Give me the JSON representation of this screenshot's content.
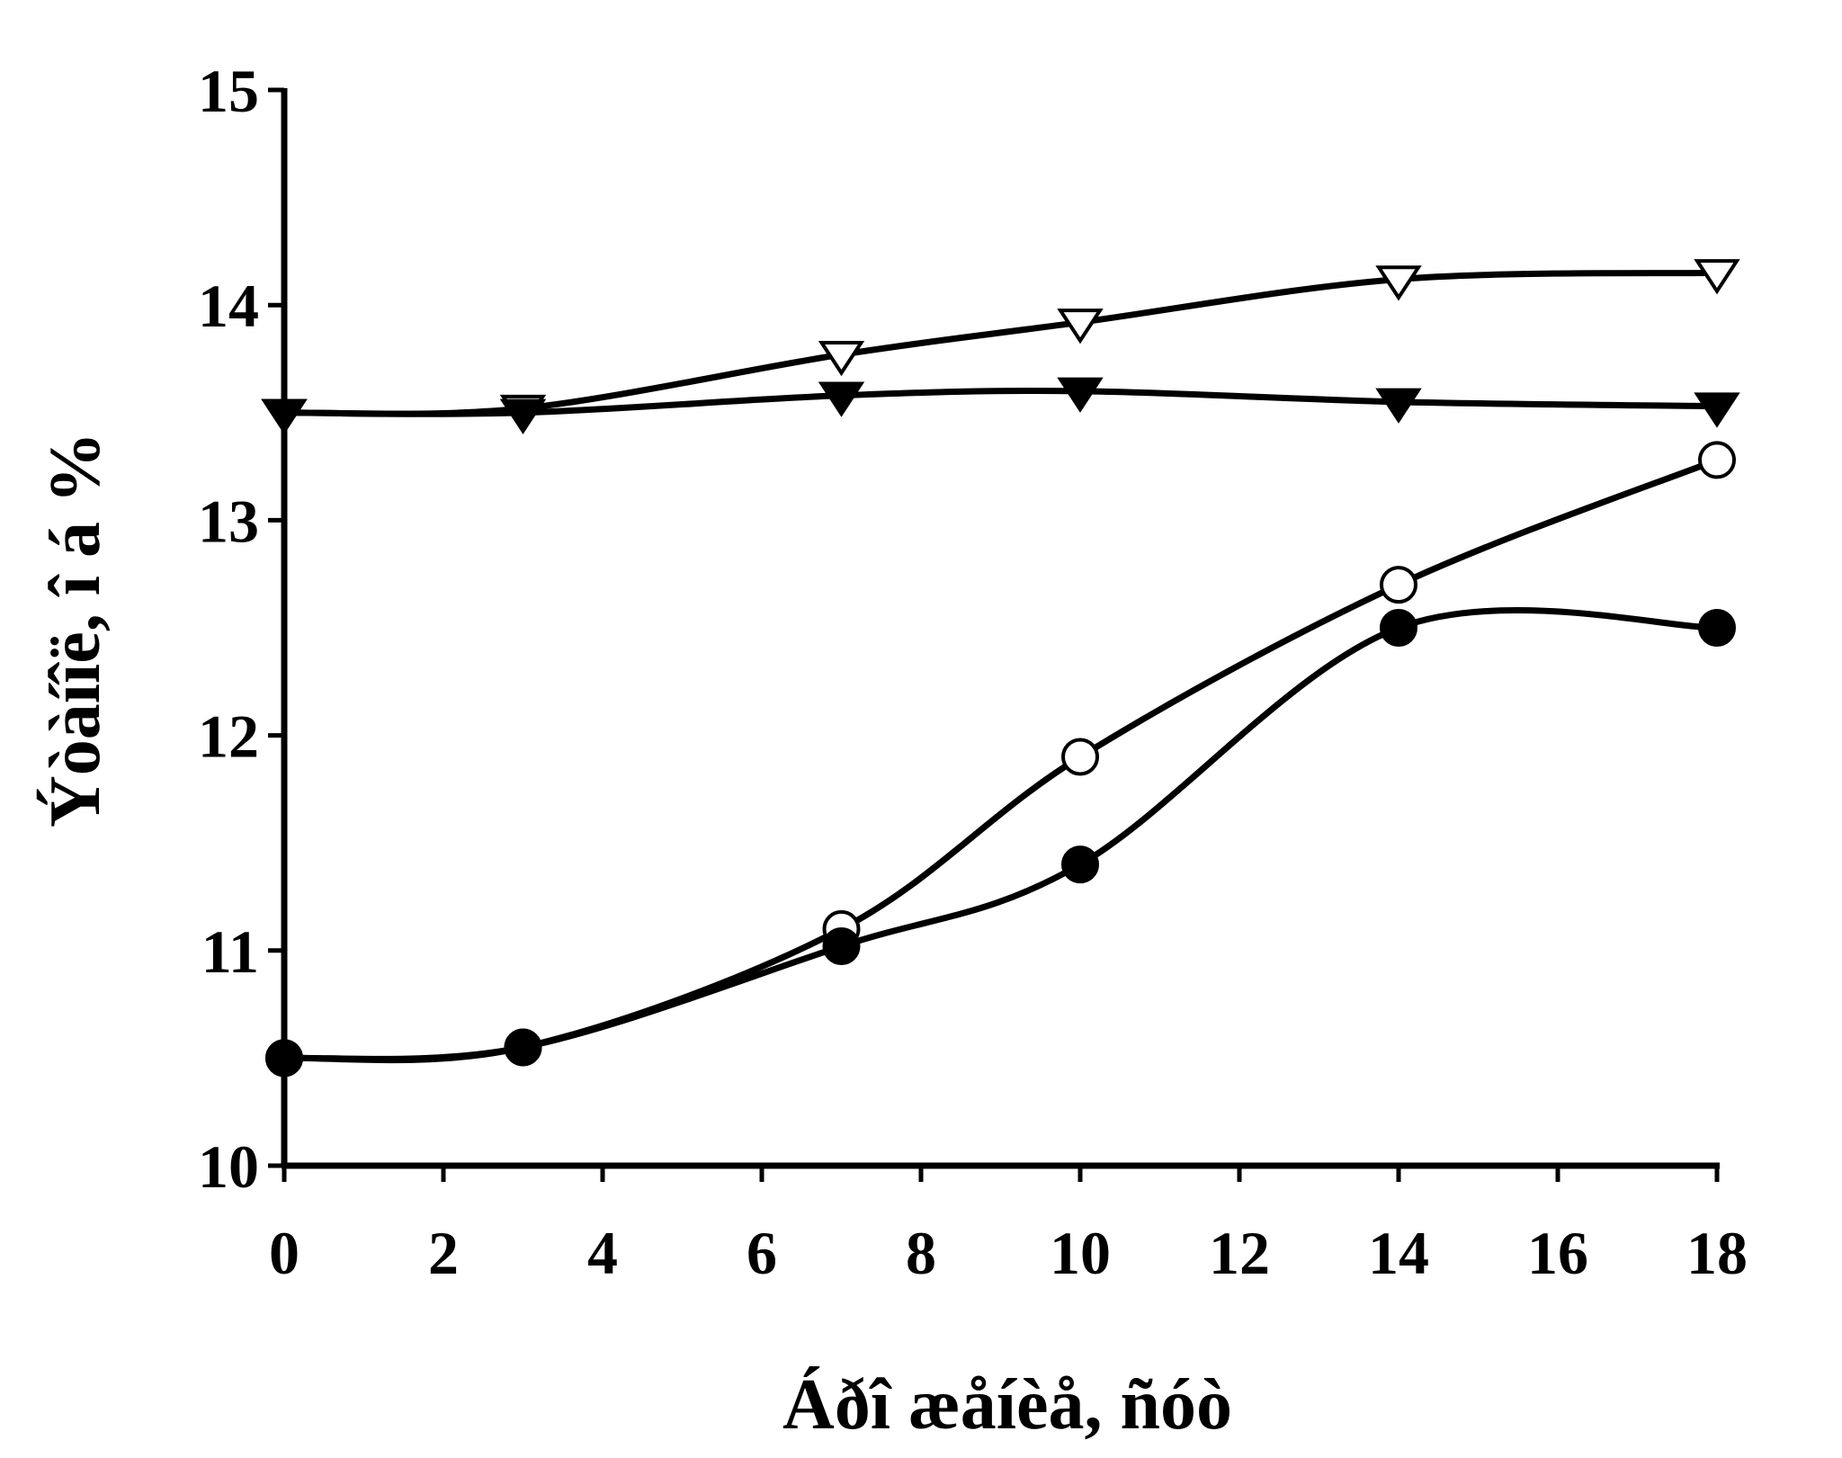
{
  "chart_data": {
    "type": "line",
    "title": "",
    "xlabel": "Áðî æåíèå, ñóò",
    "ylabel": "Ýòàíîë, î á %",
    "xlim": [
      0,
      18
    ],
    "ylim": [
      10,
      15
    ],
    "x_ticks": [
      0,
      2,
      4,
      6,
      8,
      10,
      12,
      14,
      16,
      18
    ],
    "x_tick_labels": [
      "0",
      "2",
      "4",
      "6",
      "8",
      "10",
      "12",
      "14",
      "16",
      "18"
    ],
    "y_ticks": [
      10,
      11,
      12,
      13,
      14,
      15
    ],
    "y_tick_labels": [
      "10",
      "11",
      "12",
      "13",
      "14",
      "15"
    ],
    "grid": false,
    "series": [
      {
        "marker": "triangle-down-open",
        "x": [
          0,
          3,
          7,
          10,
          14,
          18
        ],
        "y": [
          13.5,
          13.52,
          13.77,
          13.92,
          14.12,
          14.15
        ]
      },
      {
        "marker": "triangle-down-filled",
        "x": [
          0,
          3,
          7,
          10,
          14,
          18
        ],
        "y": [
          13.5,
          13.5,
          13.58,
          13.6,
          13.55,
          13.53
        ]
      },
      {
        "marker": "circle-open",
        "x": [
          0,
          3,
          7,
          10,
          14,
          18
        ],
        "y": [
          10.5,
          10.55,
          11.1,
          11.9,
          12.7,
          13.28
        ]
      },
      {
        "marker": "circle-filled",
        "x": [
          0,
          3,
          7,
          10,
          14,
          18
        ],
        "y": [
          10.5,
          10.55,
          11.02,
          11.4,
          12.5,
          12.5
        ]
      }
    ],
    "colors": {
      "ink": "#000000",
      "background": "#ffffff"
    }
  }
}
